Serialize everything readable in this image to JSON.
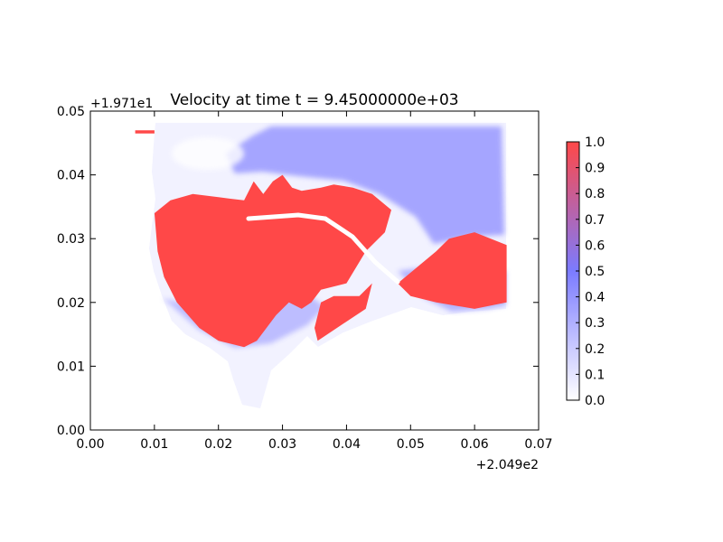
{
  "chart_data": {
    "type": "heatmap",
    "title": "Velocity at time t = 9.45000000e+03",
    "xlabel": "",
    "ylabel": "",
    "xlim": [
      0.0,
      0.07
    ],
    "ylim": [
      0.0,
      0.05
    ],
    "x_ticks": [
      "0.00",
      "0.01",
      "0.02",
      "0.03",
      "0.04",
      "0.05",
      "0.06",
      "0.07"
    ],
    "y_ticks": [
      "0.00",
      "0.01",
      "0.02",
      "0.03",
      "0.04",
      "0.05"
    ],
    "x_offset_label": "+2.049e2",
    "y_offset_label": "+1.971e1",
    "colorbar": {
      "ticks": [
        "0.0",
        "0.1",
        "0.2",
        "0.3",
        "0.4",
        "0.5",
        "0.6",
        "0.7",
        "0.8",
        "0.9",
        "1.0"
      ],
      "range": [
        0.0,
        1.0
      ],
      "colormap": [
        "#ffffff",
        "#7b7bff",
        "#ff4848"
      ]
    },
    "grid": false,
    "description_regions": [
      {
        "value": 1.0,
        "polygon": [
          [
            0.01,
            0.034
          ],
          [
            0.0125,
            0.036
          ],
          [
            0.016,
            0.037
          ],
          [
            0.02,
            0.0365
          ],
          [
            0.024,
            0.036
          ],
          [
            0.0255,
            0.039
          ],
          [
            0.027,
            0.037
          ],
          [
            0.0285,
            0.039
          ],
          [
            0.03,
            0.04
          ],
          [
            0.0315,
            0.038
          ],
          [
            0.033,
            0.0375
          ],
          [
            0.036,
            0.038
          ],
          [
            0.038,
            0.0385
          ],
          [
            0.041,
            0.038
          ],
          [
            0.044,
            0.037
          ],
          [
            0.047,
            0.0345
          ],
          [
            0.046,
            0.031
          ],
          [
            0.043,
            0.028
          ],
          [
            0.04,
            0.023
          ],
          [
            0.036,
            0.022
          ],
          [
            0.0345,
            0.02
          ],
          [
            0.033,
            0.019
          ],
          [
            0.031,
            0.02
          ],
          [
            0.029,
            0.018
          ],
          [
            0.026,
            0.014
          ],
          [
            0.024,
            0.013
          ],
          [
            0.02,
            0.014
          ],
          [
            0.017,
            0.016
          ],
          [
            0.0135,
            0.02
          ],
          [
            0.0115,
            0.024
          ],
          [
            0.0105,
            0.028
          ]
        ]
      },
      {
        "value": 1.0,
        "polygon": [
          [
            0.036,
            0.02
          ],
          [
            0.038,
            0.021
          ],
          [
            0.042,
            0.021
          ],
          [
            0.044,
            0.023
          ],
          [
            0.043,
            0.019
          ],
          [
            0.04,
            0.017
          ],
          [
            0.037,
            0.015
          ],
          [
            0.0355,
            0.014
          ],
          [
            0.035,
            0.016
          ]
        ]
      },
      {
        "value": 1.0,
        "polygon": [
          [
            0.048,
            0.023
          ],
          [
            0.054,
            0.028
          ],
          [
            0.056,
            0.03
          ],
          [
            0.06,
            0.031
          ],
          [
            0.065,
            0.029
          ],
          [
            0.065,
            0.02
          ],
          [
            0.06,
            0.019
          ],
          [
            0.054,
            0.02
          ],
          [
            0.05,
            0.021
          ]
        ]
      },
      {
        "value": 1.0,
        "polygon": [
          [
            0.007,
            0.047
          ],
          [
            0.01,
            0.047
          ],
          [
            0.01,
            0.0465
          ],
          [
            0.007,
            0.0465
          ]
        ]
      }
    ]
  }
}
